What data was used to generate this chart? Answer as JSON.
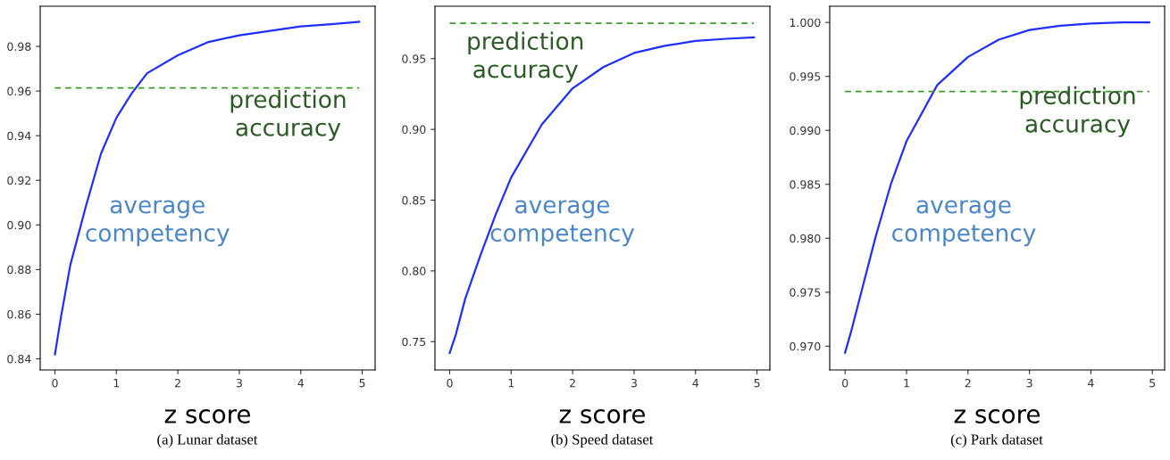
{
  "chart_data": [
    {
      "type": "line",
      "xlabel": "z score",
      "annotations": [
        "(a) Lunar dataset"
      ],
      "x": [
        0,
        0.1,
        0.25,
        0.5,
        0.75,
        1,
        1.25,
        1.5,
        2,
        2.5,
        3,
        3.5,
        4,
        4.5,
        4.95
      ],
      "series": [
        {
          "name": "average competency",
          "color": "#1f2eff",
          "values": [
            0.842,
            0.859,
            0.882,
            0.908,
            0.932,
            0.948,
            0.959,
            0.968,
            0.976,
            0.982,
            0.985,
            0.987,
            0.989,
            0.99,
            0.991
          ]
        }
      ],
      "ref_lines": [
        {
          "axis": "y",
          "value": 0.9614,
          "label": "prediction accuracy",
          "color": "#3a9a2a",
          "line_style": "dashed"
        }
      ],
      "xlim": [
        -0.24,
        5.21
      ],
      "ylim": [
        0.835,
        0.998
      ],
      "xticks": [
        0,
        1,
        2,
        3,
        4,
        5
      ],
      "yticks": [
        0.84,
        0.86,
        0.88,
        {
          "value": 0.9,
          "label": "0.90"
        },
        0.92,
        0.94,
        0.96,
        0.98
      ],
      "grid": false,
      "legend": false
    },
    {
      "type": "line",
      "xlabel": "z score",
      "annotations": [
        "(b) Speed dataset"
      ],
      "x": [
        0,
        0.1,
        0.25,
        0.5,
        0.75,
        1,
        1.5,
        2,
        2.5,
        3,
        3.5,
        4,
        4.5,
        4.95
      ],
      "series": [
        {
          "name": "average competency",
          "color": "#1f2eff",
          "values": [
            0.742,
            0.755,
            0.78,
            0.811,
            0.84,
            0.866,
            0.9035,
            0.929,
            0.944,
            0.954,
            0.959,
            0.9625,
            0.964,
            0.965
          ]
        }
      ],
      "ref_lines": [
        {
          "axis": "y",
          "value": 0.975,
          "label": "prediction accuracy",
          "color": "#3a9a2a",
          "line_style": "dashed"
        }
      ],
      "xlim": [
        -0.24,
        5.21
      ],
      "ylim": [
        0.73,
        0.987
      ],
      "xticks": [
        0,
        1,
        2,
        3,
        4,
        5
      ],
      "yticks": [
        0.75,
        {
          "value": 0.8,
          "label": "0.80"
        },
        0.85,
        {
          "value": 0.9,
          "label": "0.90"
        },
        0.95
      ],
      "grid": false,
      "legend": false
    },
    {
      "type": "line",
      "xlabel": "z score",
      "annotations": [
        "(c) Park dataset"
      ],
      "x": [
        0,
        0.1,
        0.25,
        0.5,
        0.75,
        1,
        1.5,
        2,
        2.5,
        3,
        3.5,
        4,
        4.5,
        4.95
      ],
      "series": [
        {
          "name": "average competency",
          "color": "#1f2eff",
          "values": [
            0.9694,
            0.9714,
            0.9747,
            0.9802,
            0.9851,
            0.989,
            0.9942,
            0.9968,
            0.9984,
            0.9993,
            0.9997,
            0.9999,
            1.0,
            1.0
          ]
        }
      ],
      "ref_lines": [
        {
          "axis": "y",
          "value": 0.9936,
          "label": "prediction accuracy",
          "color": "#3a9a2a",
          "line_style": "dashed"
        }
      ],
      "xlim": [
        -0.25,
        5.2
      ],
      "ylim": [
        0.9678,
        1.0015
      ],
      "xticks": [
        0,
        1,
        2,
        3,
        4,
        5
      ],
      "yticks": [
        {
          "value": 0.97,
          "label": "0.970"
        },
        {
          "value": 0.975,
          "label": "0.975"
        },
        {
          "value": 0.98,
          "label": "0.980"
        },
        {
          "value": 0.985,
          "label": "0.985"
        },
        {
          "value": 0.99,
          "label": "0.990"
        },
        {
          "value": 0.995,
          "label": "0.995"
        },
        {
          "value": 1.0,
          "label": "1.000"
        }
      ],
      "grid": false,
      "legend": false
    }
  ]
}
